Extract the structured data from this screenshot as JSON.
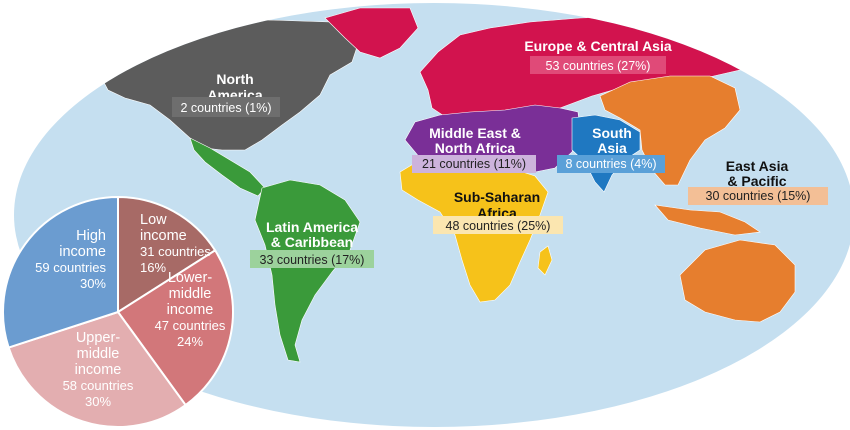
{
  "colors": {
    "ocean": "#c5dff0",
    "north_america": "#5c5c5c",
    "europe_central_asia": "#d2134e",
    "middle_east_north_africa": "#7a2f97",
    "south_asia": "#1f78c1",
    "east_asia_pacific": "#e67e2e",
    "sub_saharan_africa": "#f6c21a",
    "latin_america": "#3a9a3a",
    "high_income": "#6b9cd0",
    "low_income": "#a76a66",
    "lower_middle_income": "#d2777a",
    "upper_middle_income": "#e3aeb0"
  },
  "regions": {
    "north_america": {
      "title_line1": "North",
      "title_line2": "America",
      "count": "2 countries (1%)"
    },
    "europe_central_asia": {
      "title": "Europe & Central Asia",
      "count": "53 countries (27%)"
    },
    "middle_east_north_africa": {
      "title_line1": "Middle East &",
      "title_line2": "North Africa",
      "count": "21 countries (11%)"
    },
    "south_asia": {
      "title_line1": "South",
      "title_line2": "Asia",
      "count": "8 countries (4%)"
    },
    "east_asia_pacific": {
      "title_line1": "East Asia",
      "title_line2": "& Pacific",
      "count": "30 countries (15%)"
    },
    "sub_saharan_africa": {
      "title_line1": "Sub-Saharan",
      "title_line2": "Africa",
      "count": "48 countries (25%)"
    },
    "latin_america_caribbean": {
      "title_line1": "Latin America",
      "title_line2": "& Caribbean",
      "count": "33 countries (17%)"
    }
  },
  "chart_data": {
    "type": "pie",
    "slices": [
      {
        "group": "Low income",
        "label_lines": [
          "Low",
          "income"
        ],
        "countries": "31 countries",
        "percent": "16%",
        "value": 16
      },
      {
        "group": "Lower-middle income",
        "label_lines": [
          "Lower-",
          "middle",
          "income"
        ],
        "countries": "47 countries",
        "percent": "24%",
        "value": 24
      },
      {
        "group": "Upper-middle income",
        "label_lines": [
          "Upper-",
          "middle",
          "income"
        ],
        "countries": "58 countries",
        "percent": "30%",
        "value": 30
      },
      {
        "group": "High income",
        "label_lines": [
          "High",
          "income"
        ],
        "countries": "59 countries",
        "percent": "30%",
        "value": 30
      }
    ]
  }
}
